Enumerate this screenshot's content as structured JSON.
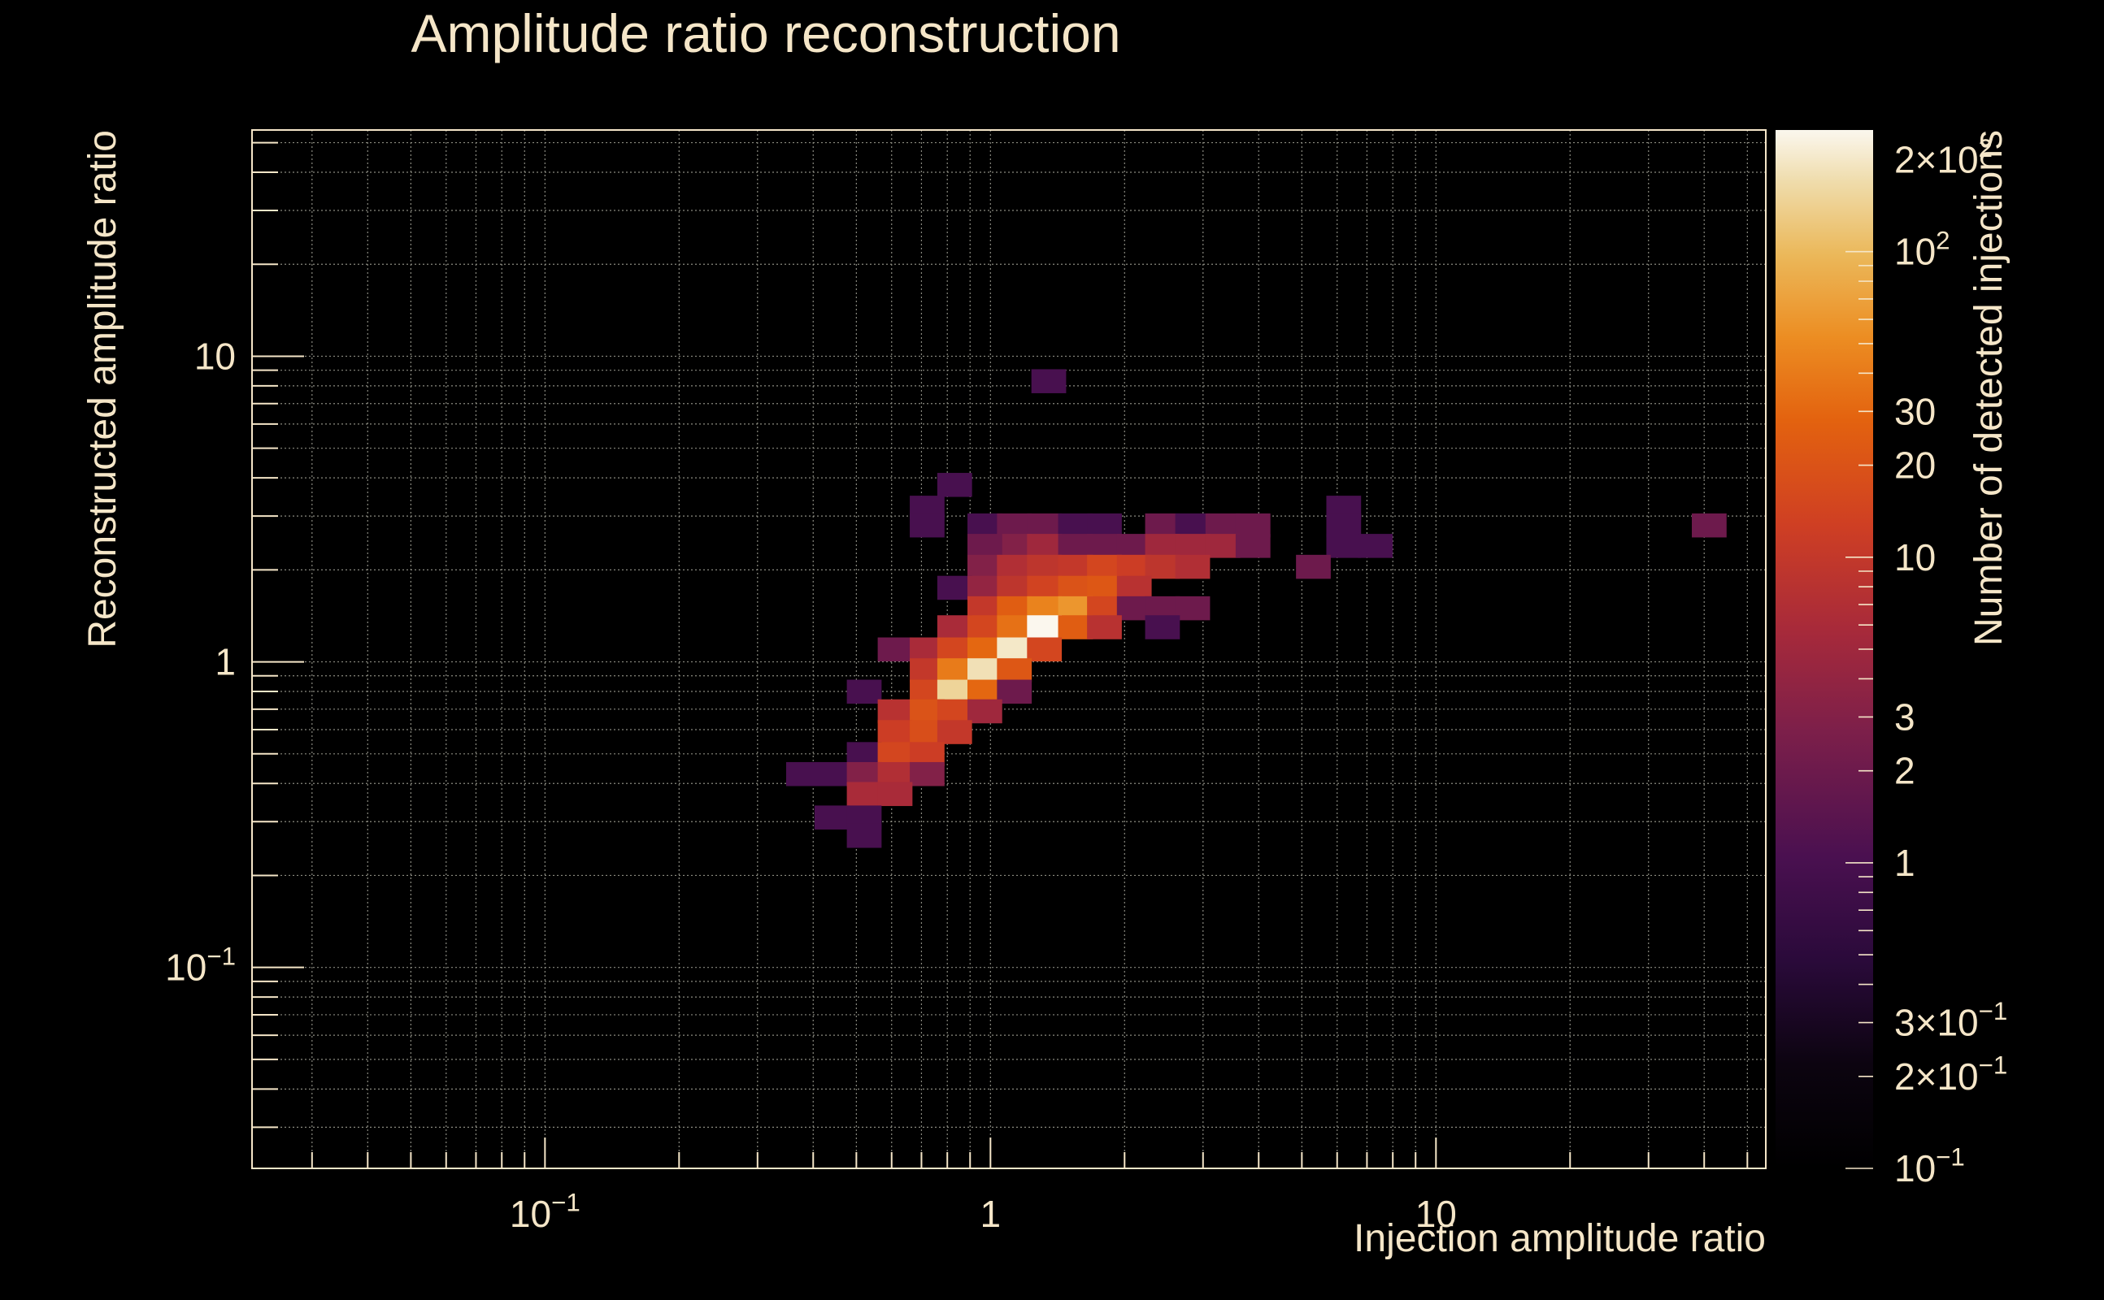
{
  "chart_data": {
    "type": "heatmap",
    "title": "Amplitude ratio reconstruction",
    "xlabel": "Injection amplitude ratio",
    "ylabel": "Reconstructed amplitude ratio",
    "zlabel": "Number of detected injections",
    "x_scale": "log",
    "y_scale": "log",
    "z_scale": "log",
    "xlim": [
      0.022,
      55
    ],
    "ylim": [
      0.022,
      55
    ],
    "zlim": [
      0.1,
      250
    ],
    "grid": true,
    "x_ticks": [
      {
        "value": 0.1,
        "base": "10",
        "exp": "−1"
      },
      {
        "value": 1,
        "base": "1",
        "exp": ""
      },
      {
        "value": 10,
        "base": "10",
        "exp": ""
      }
    ],
    "y_ticks": [
      {
        "value": 0.1,
        "base": "10",
        "exp": "−1"
      },
      {
        "value": 1,
        "base": "1",
        "exp": ""
      },
      {
        "value": 10,
        "base": "10",
        "exp": ""
      }
    ],
    "z_ticks": [
      {
        "value": 200,
        "base": "2×10",
        "exp": "2"
      },
      {
        "value": 100,
        "base": "10",
        "exp": "2"
      },
      {
        "value": 30,
        "base": "30",
        "exp": ""
      },
      {
        "value": 20,
        "base": "20",
        "exp": ""
      },
      {
        "value": 10,
        "base": "10",
        "exp": ""
      },
      {
        "value": 3,
        "base": "3",
        "exp": ""
      },
      {
        "value": 2,
        "base": "2",
        "exp": ""
      },
      {
        "value": 1,
        "base": "1",
        "exp": ""
      },
      {
        "value": 0.3,
        "base": "3×10",
        "exp": "−1"
      },
      {
        "value": 0.2,
        "base": "2×10",
        "exp": "−1"
      },
      {
        "value": 0.1,
        "base": "10",
        "exp": "−1"
      }
    ],
    "bins_per_decade": 13,
    "cells": [
      [
        1.35,
        8.3,
        1
      ],
      [
        0.83,
        3.8,
        1
      ],
      [
        0.72,
        3.2,
        1
      ],
      [
        0.72,
        2.8,
        1
      ],
      [
        0.97,
        2.8,
        1
      ],
      [
        1.13,
        2.8,
        2
      ],
      [
        1.32,
        2.8,
        2
      ],
      [
        1.55,
        2.8,
        1
      ],
      [
        1.8,
        2.8,
        1
      ],
      [
        2.43,
        2.8,
        2
      ],
      [
        2.84,
        2.8,
        1
      ],
      [
        3.32,
        2.8,
        2
      ],
      [
        3.88,
        2.8,
        2
      ],
      [
        1.13,
        2.4,
        3
      ],
      [
        1.32,
        2.4,
        5
      ],
      [
        1.55,
        2.4,
        2
      ],
      [
        1.8,
        2.4,
        2
      ],
      [
        2.1,
        2.4,
        2
      ],
      [
        2.43,
        2.4,
        5
      ],
      [
        2.84,
        2.4,
        5
      ],
      [
        3.32,
        2.4,
        5
      ],
      [
        3.88,
        2.4,
        2
      ],
      [
        0.97,
        2.4,
        2
      ],
      [
        0.97,
        2.05,
        3
      ],
      [
        1.13,
        2.05,
        7
      ],
      [
        1.32,
        2.05,
        9
      ],
      [
        1.55,
        2.05,
        10
      ],
      [
        1.8,
        2.05,
        15
      ],
      [
        2.1,
        2.05,
        12
      ],
      [
        2.43,
        2.05,
        9
      ],
      [
        2.84,
        2.05,
        7
      ],
      [
        0.83,
        1.75,
        1
      ],
      [
        0.97,
        1.75,
        4
      ],
      [
        1.13,
        1.75,
        9
      ],
      [
        1.32,
        1.75,
        14
      ],
      [
        1.55,
        1.75,
        20
      ],
      [
        1.8,
        1.75,
        22
      ],
      [
        2.1,
        1.75,
        8
      ],
      [
        0.97,
        1.5,
        10
      ],
      [
        1.13,
        1.5,
        25
      ],
      [
        1.32,
        1.5,
        45
      ],
      [
        1.55,
        1.5,
        60
      ],
      [
        1.8,
        1.5,
        15
      ],
      [
        2.1,
        1.5,
        2
      ],
      [
        2.43,
        1.5,
        2
      ],
      [
        2.84,
        1.5,
        2
      ],
      [
        0.83,
        1.3,
        6
      ],
      [
        0.97,
        1.3,
        15
      ],
      [
        1.13,
        1.3,
        35
      ],
      [
        1.32,
        1.3,
        250
      ],
      [
        1.55,
        1.3,
        25
      ],
      [
        1.8,
        1.3,
        8
      ],
      [
        2.43,
        1.3,
        1
      ],
      [
        0.61,
        1.1,
        2
      ],
      [
        0.72,
        1.1,
        6
      ],
      [
        0.83,
        1.1,
        15
      ],
      [
        0.97,
        1.1,
        30
      ],
      [
        1.13,
        1.1,
        200
      ],
      [
        1.32,
        1.1,
        15
      ],
      [
        0.72,
        0.94,
        10
      ],
      [
        0.83,
        0.94,
        40
      ],
      [
        0.97,
        0.94,
        180
      ],
      [
        1.13,
        0.94,
        22
      ],
      [
        0.52,
        0.8,
        1
      ],
      [
        0.72,
        0.8,
        15
      ],
      [
        0.83,
        0.8,
        150
      ],
      [
        0.97,
        0.8,
        30
      ],
      [
        1.13,
        0.8,
        2
      ],
      [
        0.61,
        0.69,
        8
      ],
      [
        0.72,
        0.69,
        20
      ],
      [
        0.83,
        0.69,
        15
      ],
      [
        0.97,
        0.69,
        5
      ],
      [
        0.61,
        0.59,
        12
      ],
      [
        0.72,
        0.59,
        18
      ],
      [
        0.83,
        0.59,
        10
      ],
      [
        0.52,
        0.5,
        1
      ],
      [
        0.61,
        0.5,
        15
      ],
      [
        0.72,
        0.5,
        12
      ],
      [
        0.38,
        0.43,
        1
      ],
      [
        0.44,
        0.43,
        1
      ],
      [
        0.52,
        0.43,
        3
      ],
      [
        0.61,
        0.43,
        7
      ],
      [
        0.72,
        0.43,
        3
      ],
      [
        0.52,
        0.37,
        6
      ],
      [
        0.61,
        0.37,
        6
      ],
      [
        0.44,
        0.31,
        1
      ],
      [
        0.52,
        0.31,
        1
      ],
      [
        0.52,
        0.27,
        1
      ],
      [
        6.2,
        3.2,
        1
      ],
      [
        6.2,
        2.8,
        1
      ],
      [
        6.2,
        2.4,
        1
      ],
      [
        7.3,
        2.4,
        1
      ],
      [
        5.3,
        2.05,
        2
      ],
      [
        41,
        2.8,
        2
      ]
    ]
  }
}
